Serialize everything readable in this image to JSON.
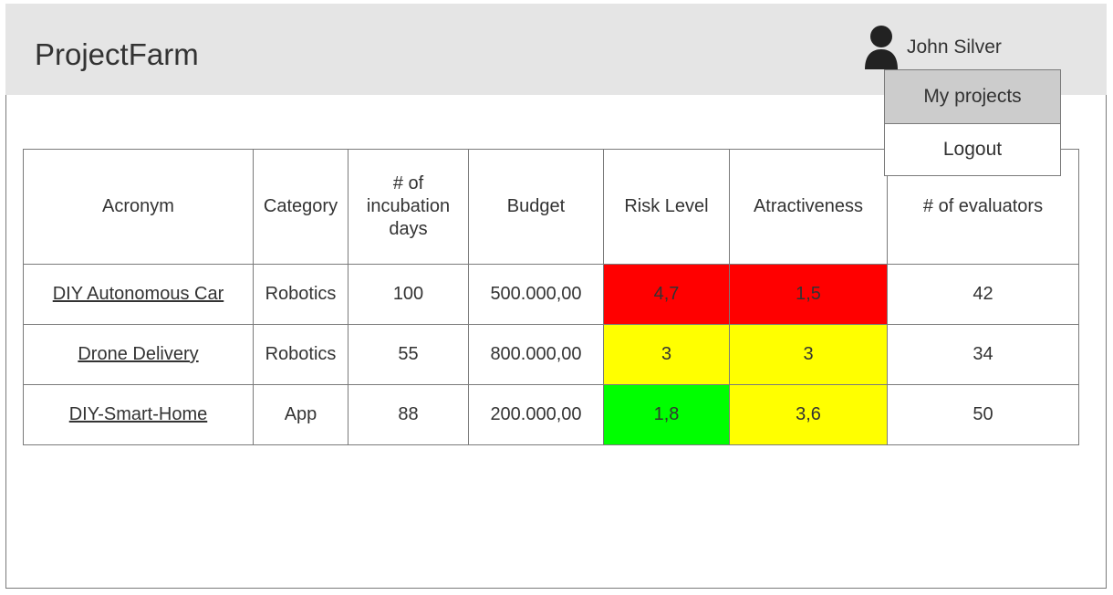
{
  "app": {
    "title": "ProjectFarm"
  },
  "user": {
    "name": "John Silver",
    "icon": "user-icon",
    "menu": [
      {
        "label": "My projects",
        "active": true
      },
      {
        "label": "Logout",
        "active": false
      }
    ]
  },
  "table": {
    "headers": {
      "acronym": "Acronym",
      "category": "Category",
      "incubation": "# of incubation days",
      "budget": "Budget",
      "risk": "Risk Level",
      "attractiveness": "Atractiveness",
      "evaluators": "# of evaluators"
    },
    "rows": [
      {
        "acronym": "DIY Autonomous Car",
        "category": "Robotics",
        "incubation": "100",
        "budget": "500.000,00",
        "risk": "4,7",
        "risk_color": "#ff0000",
        "attractiveness": "1,5",
        "attractiveness_color": "#ff0000",
        "evaluators": "42"
      },
      {
        "acronym": "Drone Delivery",
        "category": "Robotics",
        "incubation": "55",
        "budget": "800.000,00",
        "risk": "3",
        "risk_color": "#ffff00",
        "attractiveness": "3",
        "attractiveness_color": "#ffff00",
        "evaluators": "34"
      },
      {
        "acronym": "DIY-Smart-Home",
        "category": "App",
        "incubation": "88",
        "budget": "200.000,00",
        "risk": "1,8",
        "risk_color": "#00ff00",
        "attractiveness": "3,6",
        "attractiveness_color": "#ffff00",
        "evaluators": "50"
      }
    ]
  },
  "colors": {
    "header_bg": "#e5e5e5",
    "menu_active_bg": "#cccccc",
    "high": "#ff0000",
    "medium": "#ffff00",
    "low": "#00ff00"
  }
}
